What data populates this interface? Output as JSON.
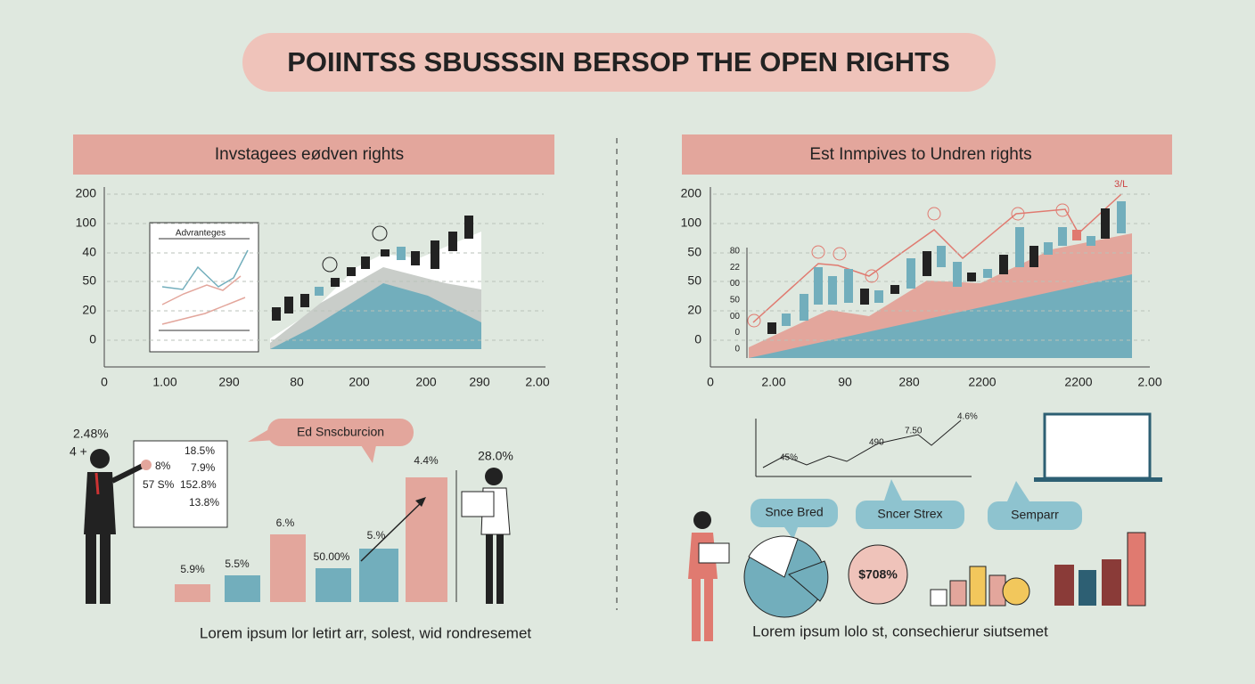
{
  "title": "POIINTSS SBUSSSIN BERSOP THE OPEN RIGHTS",
  "left": {
    "header": "Invstagees eødven rights",
    "y_labels": [
      "200",
      "100",
      "40",
      "50",
      "20",
      "0"
    ],
    "x_labels": [
      "0",
      "1.00",
      "290",
      "80",
      "200",
      "200",
      "290",
      "2.00"
    ],
    "inset_title": "Advranteges",
    "callout": "Ed Snscburcion",
    "side_labels": [
      "2.48%",
      "4 +"
    ],
    "board": [
      "18.5%",
      "8%",
      "7.9%",
      "57 S%",
      "152.8%",
      "13.8%"
    ],
    "bar_labels": [
      "5.9%",
      "5.5%",
      "6.%",
      "50.00%",
      "5.%",
      "4.4%"
    ],
    "person_label": "28.0%",
    "caption": "Lorem ipsum lor letirt arr, solest, wid rondresemet"
  },
  "right": {
    "header": "Est Inmpives to Undren rights",
    "y_labels": [
      "200",
      "100",
      "50",
      "50",
      "20",
      "0"
    ],
    "inner_y_labels": [
      "80",
      "22",
      "00",
      "50",
      "00",
      "0",
      "0"
    ],
    "x_labels": [
      "0",
      "2.00",
      "90",
      "280",
      "2200",
      "2200",
      "2.00"
    ],
    "peak_label": "3/L",
    "line_labels": [
      "4.6%",
      "7.50",
      "490",
      "45%"
    ],
    "pills": [
      "Snce Bred",
      "Sncer Strex",
      "Semparr"
    ],
    "badge": "$708%",
    "caption": "Lorem ipsum lolo st, consechierur siutsemet"
  }
}
